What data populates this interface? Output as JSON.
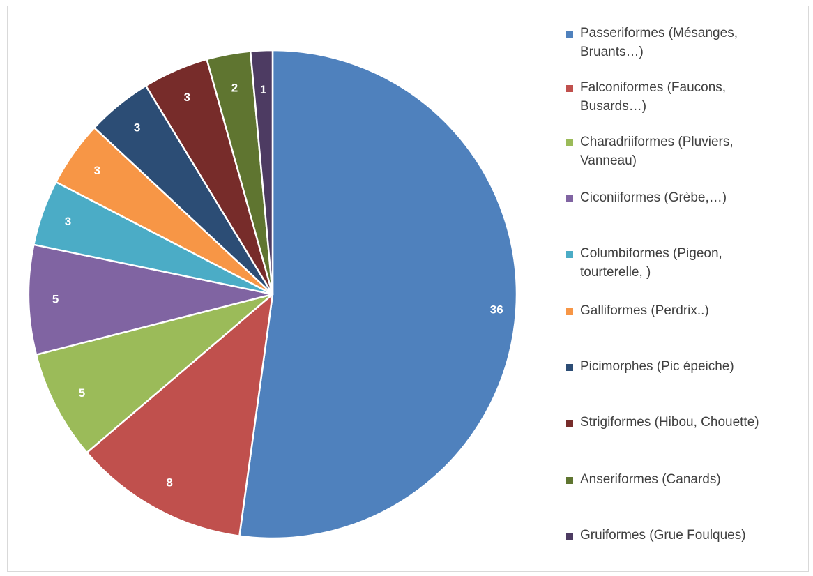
{
  "chart_data": {
    "type": "pie",
    "title": "",
    "categories": [
      "Passeriformes (Mésanges,\nBruants…)",
      "Falconiformes (Faucons,\nBusards…)",
      "Charadriiformes (Pluviers,\nVanneau)",
      "Ciconiiformes (Grèbe,…)",
      "Columbiformes (Pigeon,\ntourterelle, )",
      "Galliformes (Perdrix..)",
      "Picimorphes (Pic épeiche)",
      "Strigiformes (Hibou, Chouette)",
      "Anseriformes (Canards)",
      "Gruiformes (Grue Foulques)"
    ],
    "values": [
      36,
      8,
      5,
      5,
      3,
      3,
      3,
      3,
      2,
      1
    ],
    "colors": [
      "#4F81BD",
      "#C0504D",
      "#9BBB59",
      "#8064A2",
      "#4BACC6",
      "#F79646",
      "#2C4D75",
      "#772C2A",
      "#5F7530",
      "#4D3B62"
    ],
    "data_labels": [
      "36",
      "8",
      "5",
      "5",
      "3",
      "3",
      "3",
      "3",
      "2",
      "1"
    ],
    "start_angle_deg": 0,
    "direction": "clockwise",
    "legend_position": "right",
    "grid": false
  }
}
